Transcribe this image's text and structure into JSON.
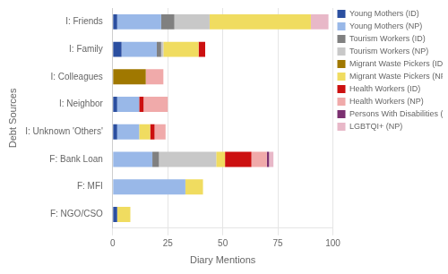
{
  "chart_data": {
    "type": "bar",
    "orientation": "horizontal",
    "stacked": true,
    "categories": [
      "I: Friends",
      "I: Family",
      "I: Colleagues",
      "I: Neighbor",
      "I: Unknown 'Others'",
      "F: Bank Loan",
      "F: MFI",
      "F: NGO/CSO"
    ],
    "series": [
      {
        "name": "Young Mothers (ID)",
        "color": "#2b4fa0",
        "values": [
          2,
          4,
          0,
          2,
          2,
          0,
          0,
          2
        ]
      },
      {
        "name": "Young Mothers (NP)",
        "color": "#99b8e8",
        "values": [
          20,
          16,
          0,
          10,
          10,
          18,
          33,
          0
        ]
      },
      {
        "name": "Tourism Workers (ID)",
        "color": "#808080",
        "values": [
          6,
          2,
          0,
          0,
          0,
          3,
          0,
          0
        ]
      },
      {
        "name": "Tourism Workers (NP)",
        "color": "#c8c8c8",
        "values": [
          16,
          1,
          0,
          0,
          0,
          26,
          0,
          0
        ]
      },
      {
        "name": "Migrant Waste Pickers (ID)",
        "color": "#a07800",
        "values": [
          0,
          0,
          15,
          0,
          0,
          0,
          0,
          0
        ]
      },
      {
        "name": "Migrant Waste Pickers (NP)",
        "color": "#f0dc60",
        "values": [
          46,
          16,
          0,
          0,
          5,
          4,
          8,
          6
        ]
      },
      {
        "name": "Health Workers (ID)",
        "color": "#cc1010",
        "values": [
          0,
          3,
          0,
          2,
          2,
          12,
          0,
          0
        ]
      },
      {
        "name": "Health Workers (NP)",
        "color": "#f0aaaa",
        "values": [
          0,
          0,
          8,
          11,
          5,
          7,
          0,
          0
        ]
      },
      {
        "name": "Persons With Disabilities (ID)",
        "color": "#7b3070",
        "values": [
          0,
          0,
          0,
          0,
          0,
          1,
          0,
          0
        ]
      },
      {
        "name": "LGBTQI+ (NP)",
        "color": "#e8b8c8",
        "values": [
          8,
          0,
          0,
          0,
          0,
          2,
          0,
          0
        ]
      }
    ],
    "xlabel": "Diary Mentions",
    "ylabel": "Debt Sources",
    "xlim": [
      0,
      100
    ],
    "xticks": [
      0,
      25,
      50,
      75,
      100
    ],
    "grid": true,
    "legend": "right"
  }
}
